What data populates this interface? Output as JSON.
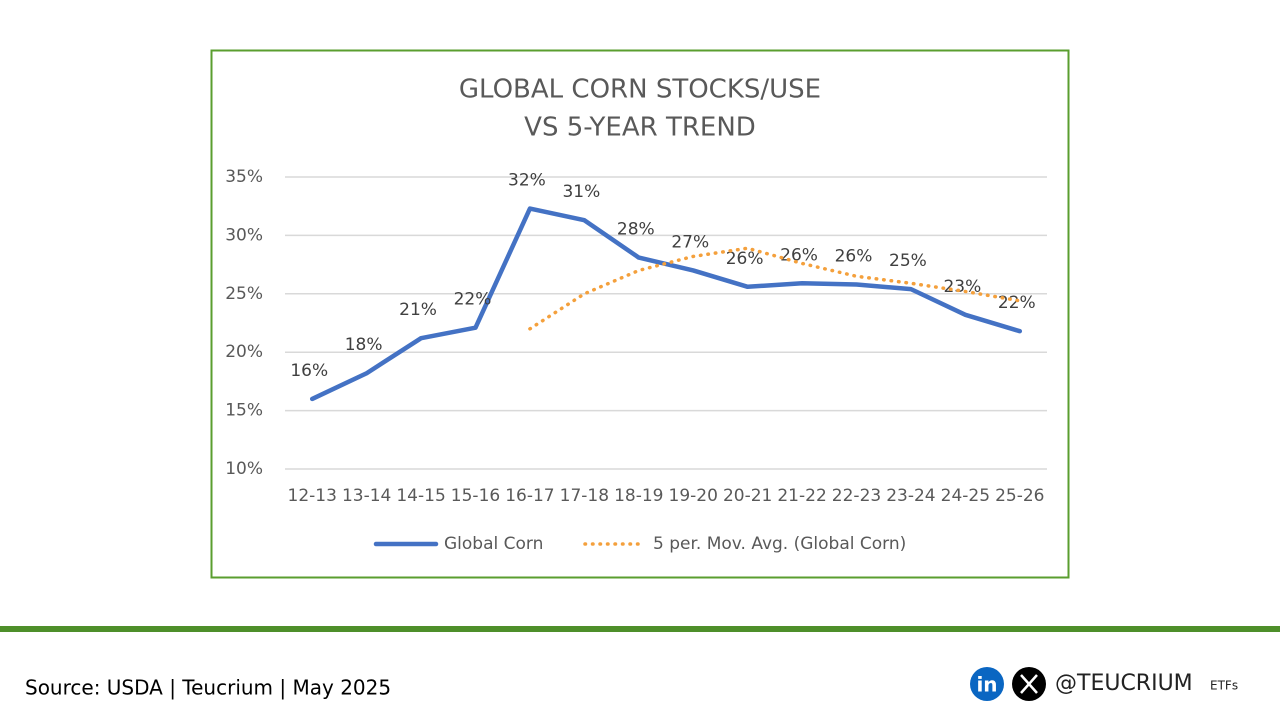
{
  "chart_data": {
    "type": "line",
    "title": [
      "GLOBAL CORN STOCKS/USE",
      "VS 5-YEAR TREND"
    ],
    "categories": [
      "12-13",
      "13-14",
      "14-15",
      "15-16",
      "16-17",
      "17-18",
      "18-19",
      "19-20",
      "20-21",
      "21-22",
      "22-23",
      "23-24",
      "24-25",
      "25-26"
    ],
    "series": [
      {
        "name": "Global Corn",
        "color": "#4472c4",
        "style": "solid",
        "values": [
          16.0,
          18.2,
          21.2,
          22.1,
          32.3,
          31.3,
          28.1,
          27.0,
          25.6,
          25.9,
          25.8,
          25.4,
          23.2,
          21.8
        ],
        "value_labels": [
          "16%",
          "18%",
          "21%",
          "22%",
          "32%",
          "31%",
          "28%",
          "27%",
          "26%",
          "26%",
          "26%",
          "25%",
          "23%",
          "22%"
        ]
      },
      {
        "name": "5 per. Mov. Avg. (Global Corn)",
        "color": "#f4a03c",
        "style": "dotted",
        "values": [
          null,
          null,
          null,
          null,
          22.0,
          25.0,
          27.0,
          28.2,
          28.9,
          27.6,
          26.5,
          25.9,
          25.2,
          24.4
        ]
      }
    ],
    "ylim": [
      10,
      35
    ],
    "yticks": [
      {
        "value": 10,
        "label": "10%"
      },
      {
        "value": 15,
        "label": "15%"
      },
      {
        "value": 20,
        "label": "20%"
      },
      {
        "value": 25,
        "label": "25%"
      },
      {
        "value": 30,
        "label": "30%"
      },
      {
        "value": 35,
        "label": "35%"
      }
    ],
    "grid": true,
    "legend": "bottom"
  },
  "footer": {
    "source": "Source: USDA | Teucrium | May 2025",
    "linkedin": "in",
    "handle": "@TEUCRIUM",
    "suffix": "ETFs"
  }
}
